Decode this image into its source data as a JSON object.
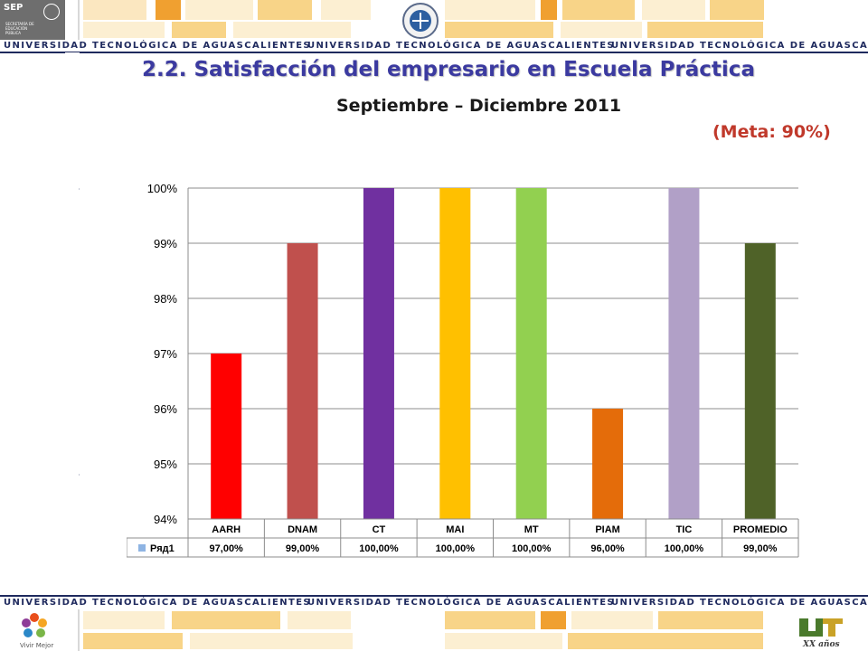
{
  "header": {
    "agency": "SEP",
    "agency_subtitle": "SECRETARÍA DE EDUCACIÓN PÚBLICA"
  },
  "banner_text": "UNIVERSIDAD TECNOLÓGICA DE AGUASCALIENTES",
  "page": {
    "title": "2.2. Satisfacción del empresario en Escuela Práctica",
    "period": "Septiembre – Diciembre 2011",
    "goal": "(Meta: 90%)"
  },
  "footer": {
    "left_logo": "Vivir Mejor",
    "right_logo": "XX años"
  },
  "colors": {
    "title": "#3b3aa0",
    "goal": "#c0392b",
    "banner_text": "#1f2a5e",
    "accent_orange": "#f0a030",
    "accent_yellow": "#f8d488"
  },
  "chart_data": {
    "type": "bar",
    "categories": [
      "AARH",
      "DNAM",
      "CT",
      "MAI",
      "MT",
      "PIAM",
      "TIC",
      "PROMEDIO"
    ],
    "series": [
      {
        "name": "Ряд1",
        "values": [
          0.97,
          0.99,
          1.0,
          1.0,
          1.0,
          0.96,
          1.0,
          0.99
        ],
        "value_labels": [
          "97,00%",
          "99,00%",
          "100,00%",
          "100,00%",
          "100,00%",
          "96,00%",
          "100,00%",
          "99,00%"
        ]
      }
    ],
    "bar_colors": [
      "#ff0000",
      "#c0504d",
      "#7030a0",
      "#ffc000",
      "#92d050",
      "#e46c0a",
      "#b1a0c7",
      "#4f6228"
    ],
    "yticks": [
      "94%",
      "95%",
      "96%",
      "97%",
      "98%",
      "99%",
      "100%"
    ],
    "ylim": [
      0.94,
      1.0
    ],
    "grid": true,
    "legend_color": "#8eb4e3",
    "data_table": true
  }
}
